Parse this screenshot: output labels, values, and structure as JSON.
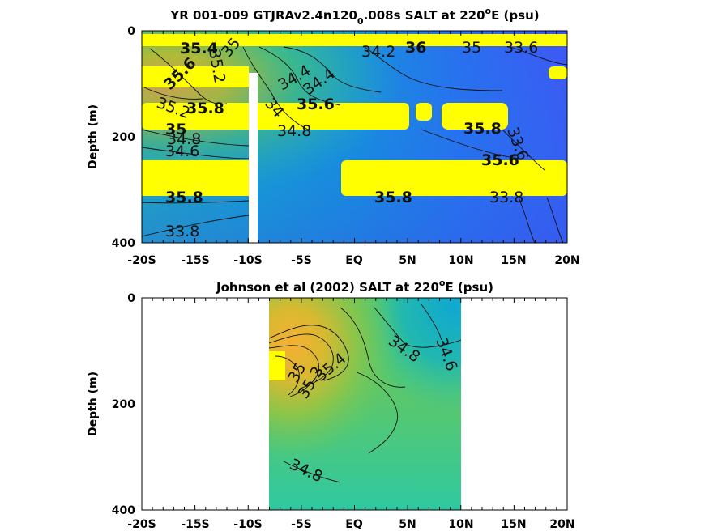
{
  "chart_data": [
    {
      "type": "heatmap",
      "title_prefix": "YR 001-009 GTJRAv2.4n120",
      "title_sub": "0",
      "title_mid": ".008s SALT at 220",
      "title_sup": "o",
      "title_suffix": "E (psu)",
      "ylabel": "Depth (m)",
      "xlim": [
        -20,
        20
      ],
      "ylim": [
        0,
        400
      ],
      "y_reversed": true,
      "x_ticks": [
        "-20S",
        "-15S",
        "-10S",
        "-5S",
        "EQ",
        "5N",
        "10N",
        "15N",
        "20N"
      ],
      "y_ticks": [
        "0",
        "200",
        "400"
      ],
      "colormap": "parula",
      "missing_color": "#ffff00",
      "contour_labels": [
        "35.4",
        "35",
        "35.2",
        "35.6",
        "35.8",
        "35.2",
        "35",
        "34.8",
        "34.6",
        "34.4",
        "34",
        "33.8",
        "34.8",
        "34.4",
        "34.2",
        "35.6",
        "36",
        "35",
        "33.6",
        "33.6",
        "33.8",
        "35.8",
        "35.8",
        "35.6",
        "35.8"
      ],
      "mask_bands_depth_m": [
        [
          5,
          25
        ],
        [
          65,
          105
        ],
        [
          135,
          185
        ],
        [
          240,
          310
        ]
      ]
    },
    {
      "type": "heatmap",
      "title_prefix": "Johnson et al (2002) SALT at 220",
      "title_sup": "o",
      "title_suffix": "E (psu)",
      "ylabel": "Depth (m)",
      "xlim": [
        -20,
        20
      ],
      "ylim": [
        0,
        400
      ],
      "y_reversed": true,
      "data_extent_lat": [
        -8,
        10
      ],
      "x_ticks": [
        "-20S",
        "-15S",
        "-10S",
        "-5S",
        "EQ",
        "5N",
        "10N",
        "15N",
        "20N"
      ],
      "y_ticks": [
        "0",
        "200",
        "400"
      ],
      "colormap": "parula",
      "contour_labels": [
        "35",
        "35.2",
        "35.4",
        "34.8",
        "34.6",
        "34.8"
      ]
    }
  ]
}
